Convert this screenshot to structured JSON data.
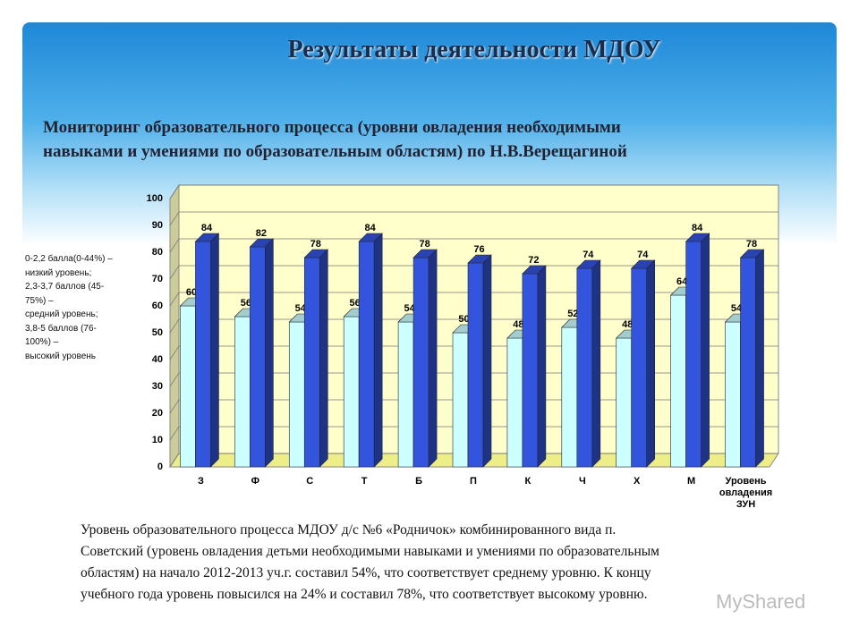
{
  "header": {
    "title": "Результаты деятельности МДОУ",
    "subtitle_lines": [
      "Мониторинг образовательного процесса (уровни овладения необходимыми",
      "навыками и умениями по образовательным областям) по Н.В.Верещагиной"
    ]
  },
  "side_note_lines": [
    "0-2,2 балла(0-44%) –",
    "низкий уровень;",
    "2,3-3,7 баллов (45-",
    "75%) –",
    "средний уровень;",
    "3,8-5 баллов (76-",
    "100%) –",
    "высокий уровень"
  ],
  "paragraph_lines": [
    "Уровень образовательного процесса МДОУ д/с №6 «Родничок» комбинированного вида п.",
    "Советский (уровень овладения детьми необходимыми навыками и умениями по образовательным",
    "областям) на начало 2012-2013 уч.г. составил 54%, что соответствует среднему уровню. К концу",
    "учебного года уровень повысился на 24% и составил 78%, что соответствует высокому уровню."
  ],
  "watermark": "MyShared",
  "chart_data": {
    "type": "bar3d",
    "categories": [
      "З",
      "Ф",
      "С",
      "Т",
      "Б",
      "П",
      "К",
      "Ч",
      "Х",
      "М",
      "Уровень овладения ЗУН"
    ],
    "series": [
      {
        "color": "#ccffff",
        "values": [
          60,
          56,
          54,
          56,
          54,
          50,
          48,
          52,
          48,
          64,
          54
        ]
      },
      {
        "color": "#3355dd",
        "values": [
          84,
          82,
          78,
          84,
          78,
          76,
          72,
          74,
          74,
          84,
          78
        ]
      }
    ],
    "ylim": [
      0,
      100
    ],
    "yticks": [
      0,
      10,
      20,
      30,
      40,
      50,
      60,
      70,
      80,
      90,
      100
    ],
    "grid": true,
    "wall_color": "#ffffcc"
  }
}
